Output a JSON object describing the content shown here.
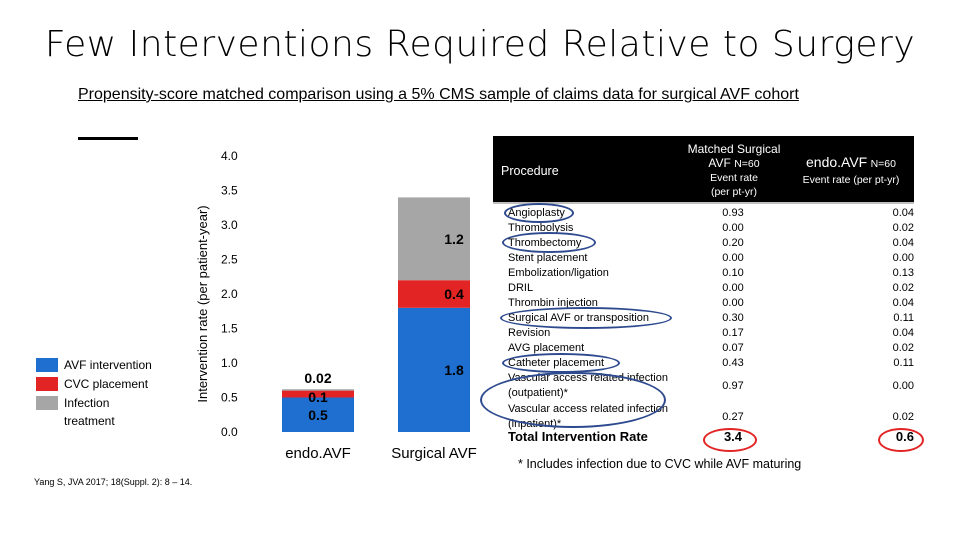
{
  "title": "Few Interventions Required Relative to Surgery",
  "subtitle": "Propensity-score matched comparison using a 5% CMS sample of claims data for surgical AVF cohort",
  "legend": {
    "items": [
      {
        "label": "AVF intervention",
        "color": "#1f6fd1"
      },
      {
        "label": "CVC placement",
        "color": "#e32424"
      },
      {
        "label": "Infection",
        "color": "#a6a6a6"
      }
    ],
    "trailing": "treatment"
  },
  "citation": "Yang S, JVA 2017; 18(Suppl. 2): 8 – 14.",
  "chart_data": {
    "type": "bar",
    "stacked": true,
    "categories": [
      "endo.AVF",
      "Surgical AVF"
    ],
    "series": [
      {
        "name": "AVF intervention",
        "color": "#1f6fd1",
        "values": [
          0.5,
          1.8
        ]
      },
      {
        "name": "CVC placement",
        "color": "#e32424",
        "values": [
          0.1,
          0.4
        ]
      },
      {
        "name": "Infection treatment",
        "color": "#a6a6a6",
        "values": [
          0.02,
          1.2
        ]
      }
    ],
    "ylabel": "Intervention rate (per patient-year)",
    "ylim": [
      0,
      4
    ],
    "yticks": [
      "0.0",
      "0.5",
      "1.0",
      "1.5",
      "2.0",
      "2.5",
      "3.0",
      "3.5",
      "4.0"
    ],
    "data_labels": [
      [
        "0.5",
        "0.1",
        "0.02"
      ],
      [
        "1.8",
        "0.4",
        "1.2"
      ]
    ],
    "legend": "left",
    "grid": false
  },
  "table": {
    "header": {
      "procedure": "Procedure",
      "mid_line1": "Matched Surgical",
      "mid_line2": "AVF",
      "mid_n": "N=60",
      "mid_sub1": "Event rate",
      "mid_sub2": "(per pt-yr)",
      "right_name": "endo.AVF",
      "right_n": "N=60",
      "right_sub": "Event rate (per pt-yr)"
    },
    "rows": [
      {
        "name": "Angioplasty",
        "surgical": "0.93",
        "endo": "0.04"
      },
      {
        "name": "Thrombolysis",
        "surgical": "0.00",
        "endo": "0.02"
      },
      {
        "name": "Thrombectomy",
        "surgical": "0.20",
        "endo": "0.04"
      },
      {
        "name": "Stent placement",
        "surgical": "0.00",
        "endo": "0.00"
      },
      {
        "name": "Embolization/ligation",
        "surgical": "0.10",
        "endo": "0.13"
      },
      {
        "name": "DRIL",
        "surgical": "0.00",
        "endo": "0.02"
      },
      {
        "name": "Thrombin injection",
        "surgical": "0.00",
        "endo": "0.04"
      },
      {
        "name": "Surgical AVF or transposition",
        "surgical": "0.30",
        "endo": "0.11"
      },
      {
        "name": "Revision",
        "surgical": "0.17",
        "endo": "0.04"
      },
      {
        "name": "AVG placement",
        "surgical": "0.07",
        "endo": "0.02"
      },
      {
        "name": "Catheter placement",
        "surgical": "0.43",
        "endo": "0.11"
      },
      {
        "name": "Vascular access related infection (outpatient)*",
        "surgical": "0.97",
        "endo": "0.00"
      },
      {
        "name": "Vascular access related infection (inpatient)*",
        "surgical": "0.27",
        "endo": "0.02"
      }
    ],
    "total": {
      "name": "Total Intervention Rate",
      "surgical": "3.4",
      "endo": "0.6"
    },
    "footnote": "* Includes infection due to CVC while AVF maturing"
  }
}
